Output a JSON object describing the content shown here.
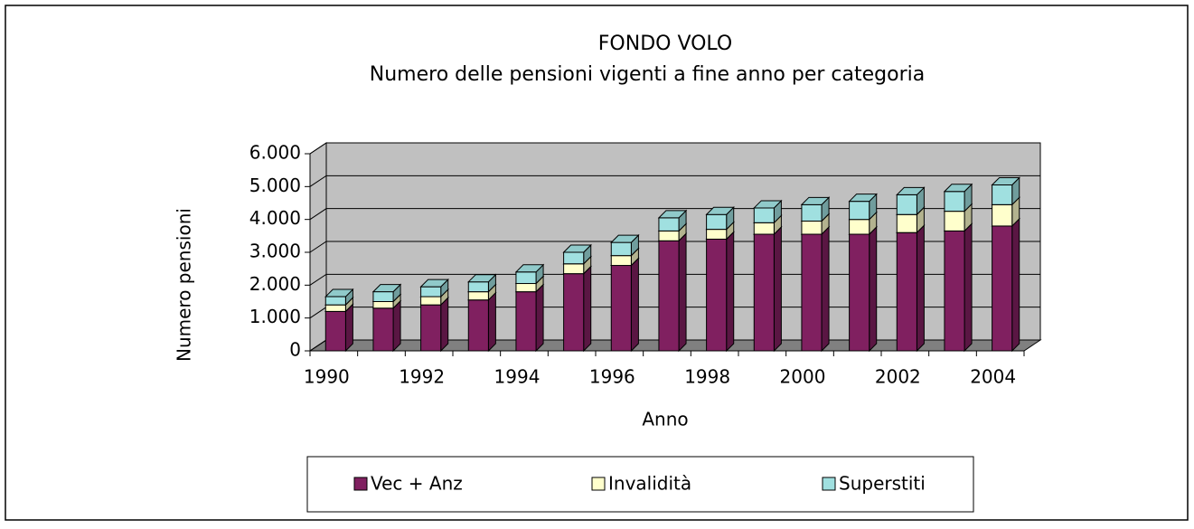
{
  "chart_data": {
    "type": "bar3d_stacked",
    "title": "FONDO VOLO",
    "subtitle": "Numero delle pensioni vigenti a fine anno per categoria",
    "x_label": "Anno",
    "y_label": "Numero pensioni",
    "categories": [
      "1990",
      null,
      "1992",
      null,
      "1994",
      null,
      "1996",
      null,
      "1998",
      null,
      "2000",
      null,
      "2002",
      null,
      "2004"
    ],
    "series": [
      {
        "name": "Vec + Anz",
        "color": "#802060",
        "values": [
          1200,
          1300,
          1400,
          1550,
          1800,
          2350,
          2600,
          3350,
          3400,
          3550,
          3550,
          3550,
          3600,
          3650,
          3800
        ]
      },
      {
        "name": "Invalidità",
        "color": "#ffffcc",
        "values": [
          200,
          200,
          250,
          250,
          250,
          300,
          300,
          300,
          300,
          350,
          400,
          450,
          550,
          600,
          650
        ]
      },
      {
        "name": "Superstiti",
        "color": "#a0e0e0",
        "values": [
          250,
          300,
          300,
          300,
          350,
          350,
          400,
          400,
          450,
          450,
          500,
          550,
          600,
          600,
          600
        ]
      }
    ],
    "ylim": [
      0,
      6000
    ],
    "yticks": [
      0,
      {
        "value": 1000,
        "label": "1.000"
      },
      {
        "value": 2000,
        "label": "2.000"
      },
      {
        "value": 3000,
        "label": "3.000"
      },
      {
        "value": 4000,
        "label": "4.000"
      },
      {
        "value": 5000,
        "label": "5.000"
      },
      {
        "value": 6000,
        "label": "6.000"
      }
    ],
    "grid": true,
    "legend": "bottom"
  }
}
